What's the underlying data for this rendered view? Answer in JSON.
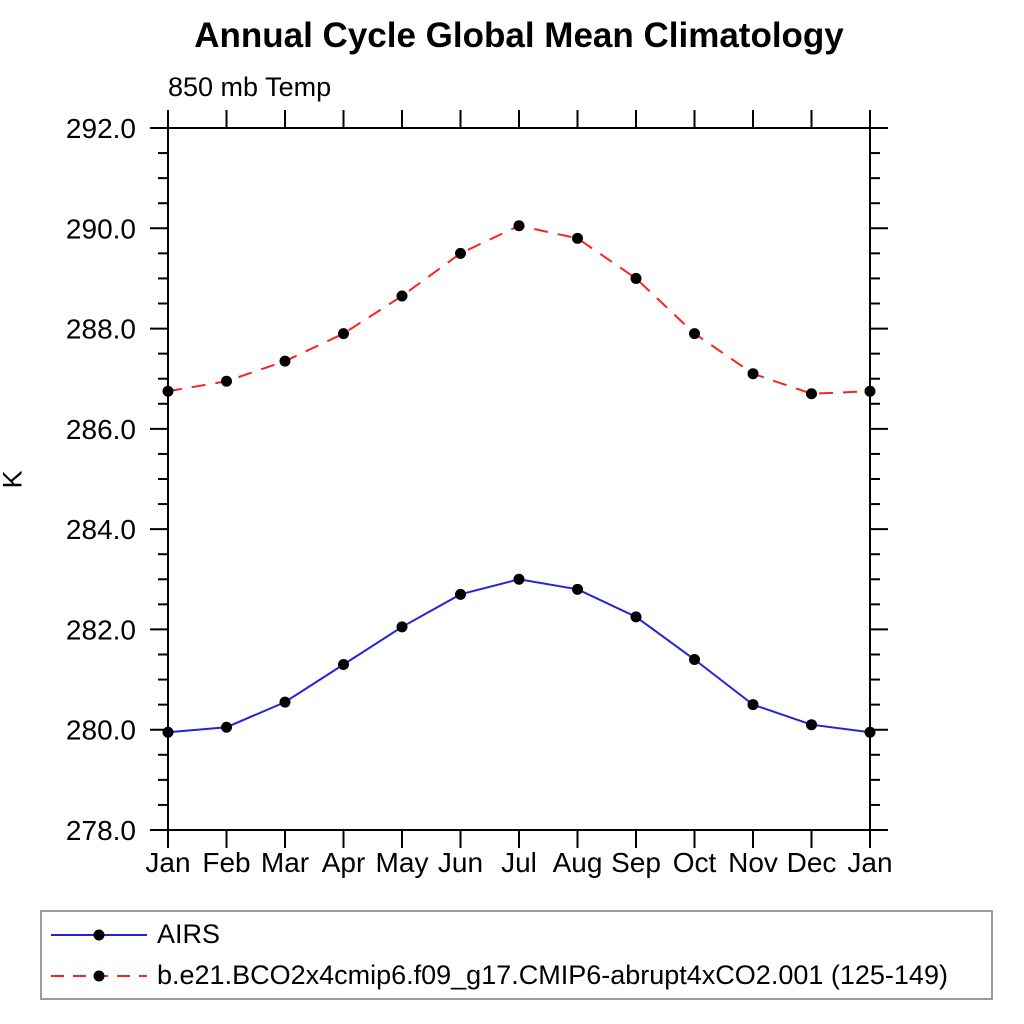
{
  "page": {
    "background": "#ffffff",
    "text_color": "#000000"
  },
  "chart_data": {
    "type": "line",
    "title": "Annual Cycle Global Mean Climatology",
    "subtitle": "850 mb Temp",
    "ylabel": "K",
    "x_categories": [
      "Jan",
      "Feb",
      "Mar",
      "Apr",
      "May",
      "Jun",
      "Jul",
      "Aug",
      "Sep",
      "Oct",
      "Nov",
      "Dec",
      "Jan"
    ],
    "ylim": [
      278.0,
      292.0
    ],
    "ytick_labels": [
      "278.0",
      "280.0",
      "282.0",
      "284.0",
      "286.0",
      "288.0",
      "290.0",
      "292.0"
    ],
    "ytick_major_step": 2.0,
    "ytick_minor_step": 0.5,
    "grid": "off",
    "legend_position": "bottom-left-box",
    "axis_color": "#000000",
    "marker": {
      "shape": "circle",
      "color": "#000000",
      "radius": 5.5
    },
    "series": [
      {
        "name": "AIRS",
        "color": "#2323dd",
        "style": "solid",
        "values": [
          279.95,
          280.05,
          280.55,
          281.3,
          282.05,
          282.7,
          283.0,
          282.8,
          282.25,
          281.4,
          280.5,
          280.1,
          279.95
        ]
      },
      {
        "name": "b.e21.BCO2x4cmip6.f09_g17.CMIP6-abrupt4xCO2.001 (125-149)",
        "color": "#fb2222",
        "style": "dashed",
        "values": [
          286.75,
          286.95,
          287.35,
          287.9,
          288.65,
          289.5,
          290.05,
          289.8,
          289.0,
          287.9,
          287.1,
          286.7,
          286.75
        ]
      }
    ]
  }
}
